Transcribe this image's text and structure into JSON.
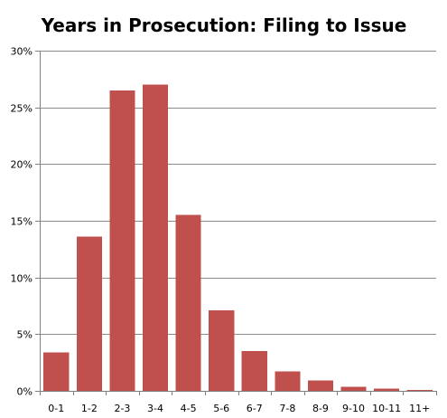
{
  "chart_data": {
    "type": "bar",
    "title": "Years in Prosecution: Filing to Issue",
    "xlabel": "",
    "ylabel": "",
    "categories": [
      "0-1",
      "1-2",
      "2-3",
      "3-4",
      "4-5",
      "5-6",
      "6-7",
      "7-8",
      "8-9",
      "9-10",
      "10-11",
      "11+"
    ],
    "values": [
      3.4,
      13.6,
      26.5,
      27.0,
      15.5,
      7.1,
      3.5,
      1.7,
      0.9,
      0.35,
      0.2,
      0.1
    ],
    "ylim": [
      0,
      30
    ],
    "yticks": [
      0,
      5,
      10,
      15,
      20,
      25,
      30
    ],
    "ytick_labels": [
      "0%",
      "5%",
      "10%",
      "15%",
      "20%",
      "25%",
      "30%"
    ],
    "grid": true,
    "legend": "none",
    "bar_color": "#c0504d"
  }
}
